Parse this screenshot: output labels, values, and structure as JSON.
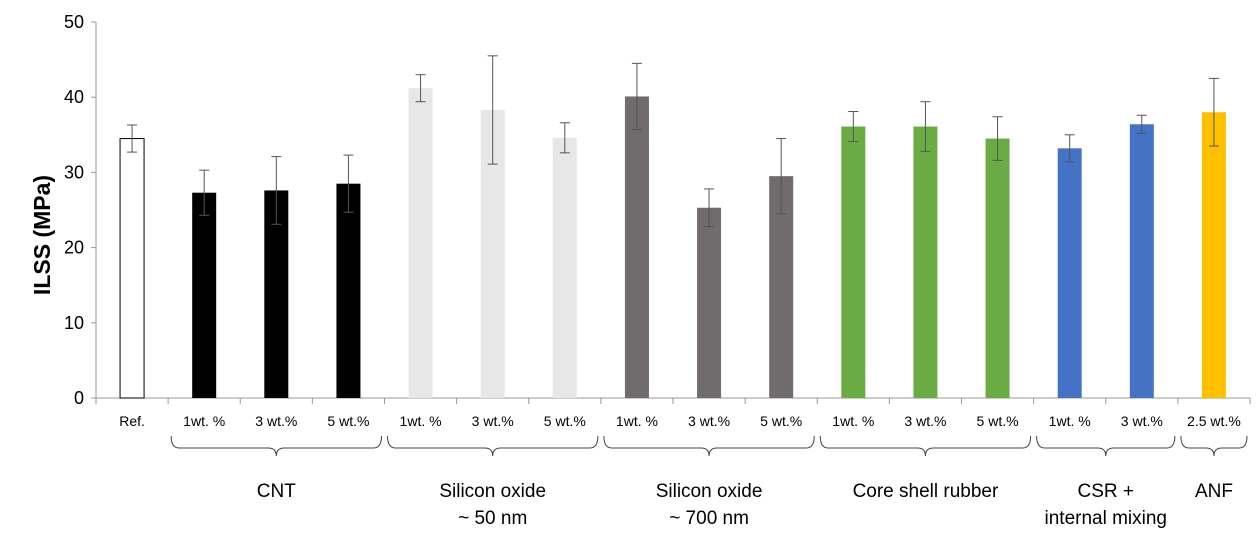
{
  "chart_data": {
    "type": "bar",
    "title": "",
    "xlabel": "",
    "ylabel": "ILSS (MPa)",
    "ylim": [
      0,
      50
    ],
    "yticks": [
      0,
      10,
      20,
      30,
      40,
      50
    ],
    "grid": false,
    "categories": [
      "Ref.",
      "1wt. %",
      "3 wt.%",
      "5 wt.%",
      "1wt. %",
      "3 wt.%",
      "5 wt.%",
      "1wt. %",
      "3 wt.%",
      "5 wt.%",
      "1wt. %",
      "3 wt.%",
      "5 wt.%",
      "1wt. %",
      "3 wt.%",
      "2.5 wt.%"
    ],
    "values": [
      34.5,
      27.3,
      27.6,
      28.5,
      41.2,
      38.3,
      34.6,
      40.1,
      25.3,
      29.5,
      36.1,
      36.1,
      34.5,
      33.2,
      36.4,
      38.0
    ],
    "errors": [
      1.8,
      3.0,
      4.5,
      3.8,
      1.8,
      7.2,
      2.0,
      4.4,
      2.5,
      5.0,
      2.0,
      3.3,
      2.9,
      1.8,
      1.2,
      4.5
    ],
    "bar_colors": [
      "#ffffff",
      "#000000",
      "#000000",
      "#000000",
      "#e7e7e7",
      "#e7e7e7",
      "#e7e7e7",
      "#706b6d",
      "#706b6d",
      "#706b6d",
      "#6aab43",
      "#6aab43",
      "#6aab43",
      "#4472c4",
      "#4472c4",
      "#ffc000"
    ],
    "groups": [
      {
        "lines": [
          "CNT"
        ],
        "start": 1,
        "end": 3
      },
      {
        "lines": [
          "Silicon oxide",
          "~ 50 nm"
        ],
        "start": 4,
        "end": 6
      },
      {
        "lines": [
          "Silicon oxide",
          "~ 700 nm"
        ],
        "start": 7,
        "end": 9
      },
      {
        "lines": [
          "Core shell rubber"
        ],
        "start": 10,
        "end": 12
      },
      {
        "lines": [
          "CSR +",
          "internal mixing"
        ],
        "start": 13,
        "end": 14
      },
      {
        "lines": [
          "ANF"
        ],
        "start": 15,
        "end": 15
      }
    ]
  }
}
